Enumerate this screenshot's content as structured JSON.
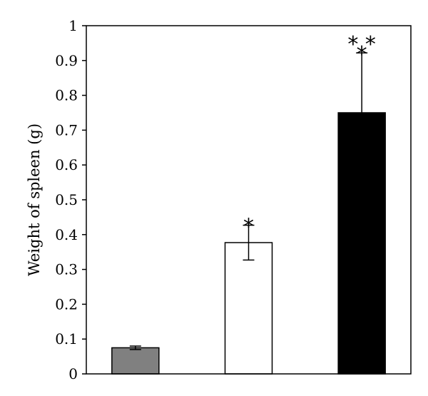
{
  "chart_data": {
    "type": "bar",
    "title": "",
    "xlabel": "",
    "ylabel": "Weight of spleen (g)",
    "ylim": [
      0,
      1
    ],
    "yticks": [
      0,
      0.1,
      0.2,
      0.3,
      0.4,
      0.5,
      0.6,
      0.7,
      0.8,
      0.9,
      1
    ],
    "ytick_labels": [
      "0",
      "0.1",
      "0.2",
      "0.3",
      "0.4",
      "0.5",
      "0.6",
      "0.7",
      "0.8",
      "0.9",
      "1"
    ],
    "categories": [
      "",
      "",
      ""
    ],
    "values": [
      0.075,
      0.377,
      0.75
    ],
    "errors": [
      0.005,
      0.05,
      0.172
    ],
    "error_style": [
      "both",
      "both",
      "upper"
    ],
    "bar_colors": [
      "#808080",
      "#ffffff",
      "#000000"
    ],
    "annotations": [
      "",
      "*",
      "* *\n*"
    ],
    "grid": false
  }
}
